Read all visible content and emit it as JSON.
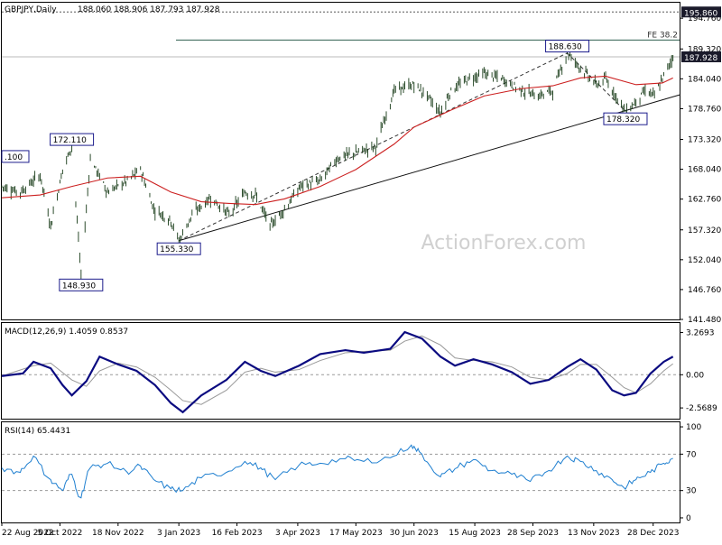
{
  "chart_data": [
    {
      "type": "candlestick",
      "panel": "price",
      "title": "GBPJPY,Daily",
      "ohlc_header": "188.060 188.906 187.793 187.928",
      "watermark": "ActionForex.com",
      "y_ticks": [
        "194.760",
        "189.320",
        "184.040",
        "178.760",
        "173.320",
        "168.040",
        "162.760",
        "157.320",
        "152.040",
        "146.760",
        "141.480"
      ],
      "ylim": [
        141.48,
        197.5
      ],
      "current_price": "187.928",
      "top_level": "195.860",
      "fib_label": "FE 38.2",
      "fib_level": 190.9,
      "swing_labels": [
        {
          "text": ".100",
          "date": "2022-08-22",
          "price": 169.1
        },
        {
          "text": "172.110",
          "date": "2022-10-14",
          "price": 172.11
        },
        {
          "text": "148.930",
          "date": "2022-10-21",
          "price": 148.93
        },
        {
          "text": "155.330",
          "date": "2023-01-03",
          "price": 155.33
        },
        {
          "text": "188.630",
          "date": "2023-10-24",
          "price": 188.63
        },
        {
          "text": "178.320",
          "date": "2023-12-07",
          "price": 178.32
        }
      ],
      "series": [
        {
          "name": "price",
          "color": "#1a3a1a",
          "points": [
            [
              "2022-08-22",
              165
            ],
            [
              "2022-09-05",
              164
            ],
            [
              "2022-09-20",
              167
            ],
            [
              "2022-09-28",
              158
            ],
            [
              "2022-10-07",
              168
            ],
            [
              "2022-10-14",
              172.11
            ],
            [
              "2022-10-21",
              149
            ],
            [
              "2022-10-28",
              170
            ],
            [
              "2022-11-10",
              164
            ],
            [
              "2022-11-25",
              166
            ],
            [
              "2022-12-05",
              168
            ],
            [
              "2022-12-15",
              161
            ],
            [
              "2022-12-28",
              159
            ],
            [
              "2023-01-03",
              155.33
            ],
            [
              "2023-01-13",
              160
            ],
            [
              "2023-01-27",
              163
            ],
            [
              "2023-02-10",
              160
            ],
            [
              "2023-02-22",
              164
            ],
            [
              "2023-03-02",
              163.5
            ],
            [
              "2023-03-13",
              158
            ],
            [
              "2023-03-24",
              161
            ],
            [
              "2023-04-05",
              165
            ],
            [
              "2023-04-20",
              166
            ],
            [
              "2023-05-03",
              170
            ],
            [
              "2023-05-17",
              171
            ],
            [
              "2023-06-01",
              172
            ],
            [
              "2023-06-15",
              182
            ],
            [
              "2023-06-30",
              183
            ],
            [
              "2023-07-10",
              181
            ],
            [
              "2023-07-20",
              178
            ],
            [
              "2023-07-28",
              182
            ],
            [
              "2023-08-10",
              184
            ],
            [
              "2023-08-22",
              185
            ],
            [
              "2023-09-05",
              184
            ],
            [
              "2023-09-19",
              182
            ],
            [
              "2023-10-02",
              181
            ],
            [
              "2023-10-13",
              182
            ],
            [
              "2023-10-24",
              188.63
            ],
            [
              "2023-11-03",
              186
            ],
            [
              "2023-11-15",
              183
            ],
            [
              "2023-11-22",
              184
            ],
            [
              "2023-12-07",
              178.32
            ],
            [
              "2023-12-15",
              180
            ],
            [
              "2023-12-22",
              182
            ],
            [
              "2023-12-29",
              181
            ],
            [
              "2024-01-04",
              184
            ],
            [
              "2024-01-12",
              187.928
            ]
          ]
        },
        {
          "name": "ma",
          "color": "#cc2020",
          "points": [
            [
              "2022-08-22",
              163
            ],
            [
              "2022-09-20",
              163.5
            ],
            [
              "2022-10-14",
              165
            ],
            [
              "2022-11-10",
              166.5
            ],
            [
              "2022-12-05",
              166.8
            ],
            [
              "2022-12-28",
              164
            ],
            [
              "2023-01-20",
              162.3
            ],
            [
              "2023-02-10",
              162
            ],
            [
              "2023-03-02",
              161.8
            ],
            [
              "2023-03-24",
              162.8
            ],
            [
              "2023-04-20",
              165
            ],
            [
              "2023-05-17",
              168
            ],
            [
              "2023-06-15",
              172.5
            ],
            [
              "2023-06-30",
              175.5
            ],
            [
              "2023-07-28",
              178.5
            ],
            [
              "2023-08-22",
              181
            ],
            [
              "2023-09-19",
              182.3
            ],
            [
              "2023-10-13",
              182.8
            ],
            [
              "2023-11-03",
              184.2
            ],
            [
              "2023-11-22",
              184.5
            ],
            [
              "2023-12-15",
              183
            ],
            [
              "2024-01-04",
              183.3
            ],
            [
              "2024-01-12",
              184.2
            ]
          ]
        }
      ],
      "trendlines": [
        {
          "style": "solid",
          "from": [
            "2023-01-03",
            155.4
          ],
          "to": [
            "2024-01-17",
            181.2
          ]
        },
        {
          "style": "dashed",
          "from": [
            "2023-01-03",
            155.4
          ],
          "to": [
            "2023-10-24",
            188.6
          ]
        },
        {
          "style": "dashed",
          "from": [
            "2023-10-24",
            188.6
          ],
          "to": [
            "2023-12-07",
            178.3
          ]
        }
      ]
    },
    {
      "type": "line",
      "panel": "macd",
      "title": "MACD(12,26,9) 1.4059 0.8537",
      "y_ticks": [
        "3.2693",
        "0.00",
        "-2.5689"
      ],
      "ylim": [
        -3.4,
        4.0
      ],
      "series": [
        {
          "name": "macd",
          "color": "#0a0a80",
          "points": [
            [
              "2022-08-22",
              -0.1
            ],
            [
              "2022-09-07",
              0.1
            ],
            [
              "2022-09-15",
              1.0
            ],
            [
              "2022-09-28",
              0.5
            ],
            [
              "2022-10-07",
              -0.8
            ],
            [
              "2022-10-14",
              -1.6
            ],
            [
              "2022-10-25",
              -0.5
            ],
            [
              "2022-11-04",
              1.4
            ],
            [
              "2022-11-18",
              0.8
            ],
            [
              "2022-12-02",
              0.3
            ],
            [
              "2022-12-16",
              -0.8
            ],
            [
              "2022-12-28",
              -2.2
            ],
            [
              "2023-01-06",
              -2.9
            ],
            [
              "2023-01-20",
              -1.6
            ],
            [
              "2023-02-08",
              -0.4
            ],
            [
              "2023-02-22",
              1.0
            ],
            [
              "2023-03-06",
              0.3
            ],
            [
              "2023-03-17",
              -0.1
            ],
            [
              "2023-04-04",
              0.7
            ],
            [
              "2023-04-20",
              1.6
            ],
            [
              "2023-05-09",
              1.9
            ],
            [
              "2023-05-23",
              1.7
            ],
            [
              "2023-06-12",
              2.0
            ],
            [
              "2023-06-23",
              3.3
            ],
            [
              "2023-07-06",
              2.8
            ],
            [
              "2023-07-20",
              1.4
            ],
            [
              "2023-07-31",
              0.7
            ],
            [
              "2023-08-14",
              1.2
            ],
            [
              "2023-08-28",
              0.8
            ],
            [
              "2023-09-12",
              0.2
            ],
            [
              "2023-09-26",
              -0.7
            ],
            [
              "2023-10-10",
              -0.4
            ],
            [
              "2023-10-24",
              0.6
            ],
            [
              "2023-11-03",
              1.2
            ],
            [
              "2023-11-15",
              0.4
            ],
            [
              "2023-11-27",
              -1.2
            ],
            [
              "2023-12-06",
              -1.6
            ],
            [
              "2023-12-15",
              -1.4
            ],
            [
              "2023-12-26",
              0.1
            ],
            [
              "2024-01-05",
              1.0
            ],
            [
              "2024-01-12",
              1.4
            ]
          ]
        },
        {
          "name": "signal",
          "color": "#999999",
          "points": [
            [
              "2022-08-22",
              -0.1
            ],
            [
              "2022-09-15",
              0.7
            ],
            [
              "2022-09-28",
              0.9
            ],
            [
              "2022-10-14",
              -0.4
            ],
            [
              "2022-10-25",
              -0.9
            ],
            [
              "2022-11-04",
              0.3
            ],
            [
              "2022-11-18",
              0.9
            ],
            [
              "2022-12-02",
              0.6
            ],
            [
              "2022-12-16",
              -0.2
            ],
            [
              "2022-12-28",
              -1.2
            ],
            [
              "2023-01-06",
              -2.0
            ],
            [
              "2023-01-20",
              -2.3
            ],
            [
              "2023-02-08",
              -1.2
            ],
            [
              "2023-02-22",
              0.2
            ],
            [
              "2023-03-06",
              0.5
            ],
            [
              "2023-03-17",
              0.2
            ],
            [
              "2023-04-04",
              0.4
            ],
            [
              "2023-04-20",
              1.1
            ],
            [
              "2023-05-09",
              1.7
            ],
            [
              "2023-05-23",
              1.8
            ],
            [
              "2023-06-12",
              1.9
            ],
            [
              "2023-06-23",
              2.6
            ],
            [
              "2023-07-06",
              3.0
            ],
            [
              "2023-07-20",
              2.3
            ],
            [
              "2023-07-31",
              1.3
            ],
            [
              "2023-08-14",
              1.1
            ],
            [
              "2023-08-28",
              1.0
            ],
            [
              "2023-09-12",
              0.6
            ],
            [
              "2023-09-26",
              -0.2
            ],
            [
              "2023-10-10",
              -0.4
            ],
            [
              "2023-10-24",
              0.1
            ],
            [
              "2023-11-03",
              0.8
            ],
            [
              "2023-11-15",
              0.8
            ],
            [
              "2023-11-27",
              -0.2
            ],
            [
              "2023-12-06",
              -1.0
            ],
            [
              "2023-12-15",
              -1.4
            ],
            [
              "2023-12-26",
              -0.7
            ],
            [
              "2024-01-05",
              0.3
            ],
            [
              "2024-01-12",
              0.85
            ]
          ]
        }
      ]
    },
    {
      "type": "line",
      "panel": "rsi",
      "title": "RSI(14) 65.4431",
      "y_ticks": [
        "100",
        "70",
        "30",
        "0"
      ],
      "ylim": [
        -5,
        105
      ],
      "levels": [
        70,
        30
      ],
      "series": [
        {
          "name": "rsi",
          "color": "#1e7fd0",
          "points": [
            [
              "2022-08-22",
              55
            ],
            [
              "2022-09-05",
              50
            ],
            [
              "2022-09-15",
              68
            ],
            [
              "2022-09-28",
              42
            ],
            [
              "2022-10-07",
              30
            ],
            [
              "2022-10-14",
              48
            ],
            [
              "2022-10-21",
              22
            ],
            [
              "2022-10-28",
              55
            ],
            [
              "2022-11-10",
              60
            ],
            [
              "2022-11-25",
              50
            ],
            [
              "2022-12-05",
              57
            ],
            [
              "2022-12-15",
              42
            ],
            [
              "2022-12-28",
              32
            ],
            [
              "2023-01-06",
              30
            ],
            [
              "2023-01-20",
              44
            ],
            [
              "2023-02-08",
              50
            ],
            [
              "2023-02-22",
              62
            ],
            [
              "2023-03-06",
              55
            ],
            [
              "2023-03-17",
              42
            ],
            [
              "2023-04-04",
              58
            ],
            [
              "2023-04-20",
              60
            ],
            [
              "2023-05-09",
              65
            ],
            [
              "2023-05-23",
              62
            ],
            [
              "2023-06-12",
              66
            ],
            [
              "2023-06-28",
              80
            ],
            [
              "2023-07-06",
              70
            ],
            [
              "2023-07-20",
              45
            ],
            [
              "2023-07-31",
              54
            ],
            [
              "2023-08-14",
              64
            ],
            [
              "2023-08-28",
              52
            ],
            [
              "2023-09-12",
              48
            ],
            [
              "2023-09-26",
              40
            ],
            [
              "2023-10-10",
              52
            ],
            [
              "2023-10-24",
              68
            ],
            [
              "2023-11-03",
              62
            ],
            [
              "2023-11-15",
              52
            ],
            [
              "2023-11-27",
              42
            ],
            [
              "2023-12-06",
              33
            ],
            [
              "2023-12-15",
              42
            ],
            [
              "2023-12-26",
              50
            ],
            [
              "2024-01-05",
              60
            ],
            [
              "2024-01-12",
              65.4
            ]
          ]
        }
      ]
    }
  ],
  "x_axis": {
    "labels": [
      {
        "text": "22 Aug 2022",
        "date": "2022-08-22"
      },
      {
        "text": "5 Oct 2022",
        "date": "2022-10-05"
      },
      {
        "text": "18 Nov 2022",
        "date": "2022-11-18"
      },
      {
        "text": "3 Jan 2023",
        "date": "2023-01-03"
      },
      {
        "text": "16 Feb 2023",
        "date": "2023-02-16"
      },
      {
        "text": "3 Apr 2023",
        "date": "2023-04-03"
      },
      {
        "text": "17 May 2023",
        "date": "2023-05-17"
      },
      {
        "text": "30 Jun 2023",
        "date": "2023-06-30"
      },
      {
        "text": "15 Aug 2023",
        "date": "2023-08-15"
      },
      {
        "text": "28 Sep 2023",
        "date": "2023-09-28"
      },
      {
        "text": "13 Nov 2023",
        "date": "2023-11-13"
      },
      {
        "text": "28 Dec 2023",
        "date": "2023-12-28"
      }
    ]
  }
}
